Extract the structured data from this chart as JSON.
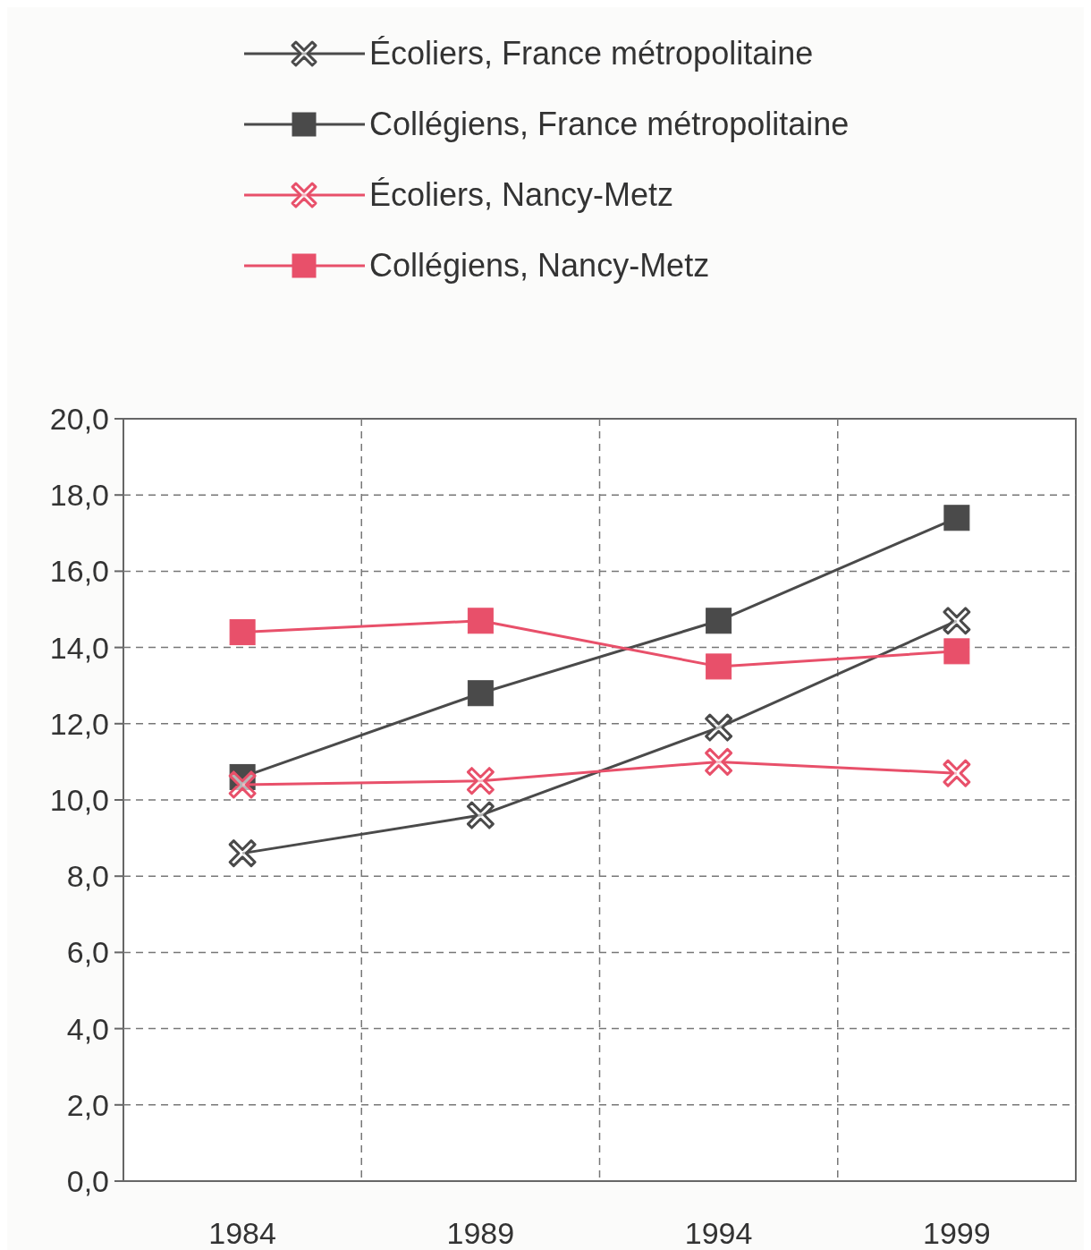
{
  "chart_data": {
    "type": "line",
    "categories": [
      "1984",
      "1989",
      "1994",
      "1999"
    ],
    "series": [
      {
        "name": "Écoliers, France métropolitaine",
        "color": "#4a4a4a",
        "marker": "cross",
        "values": [
          8.6,
          9.6,
          11.9,
          14.7
        ]
      },
      {
        "name": "Collégiens, France métropolitaine",
        "color": "#4a4a4a",
        "marker": "square",
        "values": [
          10.6,
          12.8,
          14.7,
          17.4
        ]
      },
      {
        "name": "Écoliers, Nancy-Metz",
        "color": "#e8506a",
        "marker": "cross",
        "values": [
          10.4,
          10.5,
          11.0,
          10.7
        ]
      },
      {
        "name": "Collégiens, Nancy-Metz",
        "color": "#e8506a",
        "marker": "square",
        "values": [
          14.4,
          14.7,
          13.5,
          13.9
        ]
      }
    ],
    "ylim": [
      0,
      20
    ],
    "yticks": [
      {
        "value": 0,
        "label": "0,0"
      },
      {
        "value": 2,
        "label": "2,0"
      },
      {
        "value": 4,
        "label": "4,0"
      },
      {
        "value": 6,
        "label": "6,0"
      },
      {
        "value": 8,
        "label": "8,0"
      },
      {
        "value": 10,
        "label": "10,0"
      },
      {
        "value": 12,
        "label": "12,0"
      },
      {
        "value": 14,
        "label": "14,0"
      },
      {
        "value": 16,
        "label": "16,0"
      },
      {
        "value": 18,
        "label": "18,0"
      },
      {
        "value": 20,
        "label": "20,0"
      }
    ],
    "grid": true,
    "legend": "top",
    "line_style": "solid"
  }
}
